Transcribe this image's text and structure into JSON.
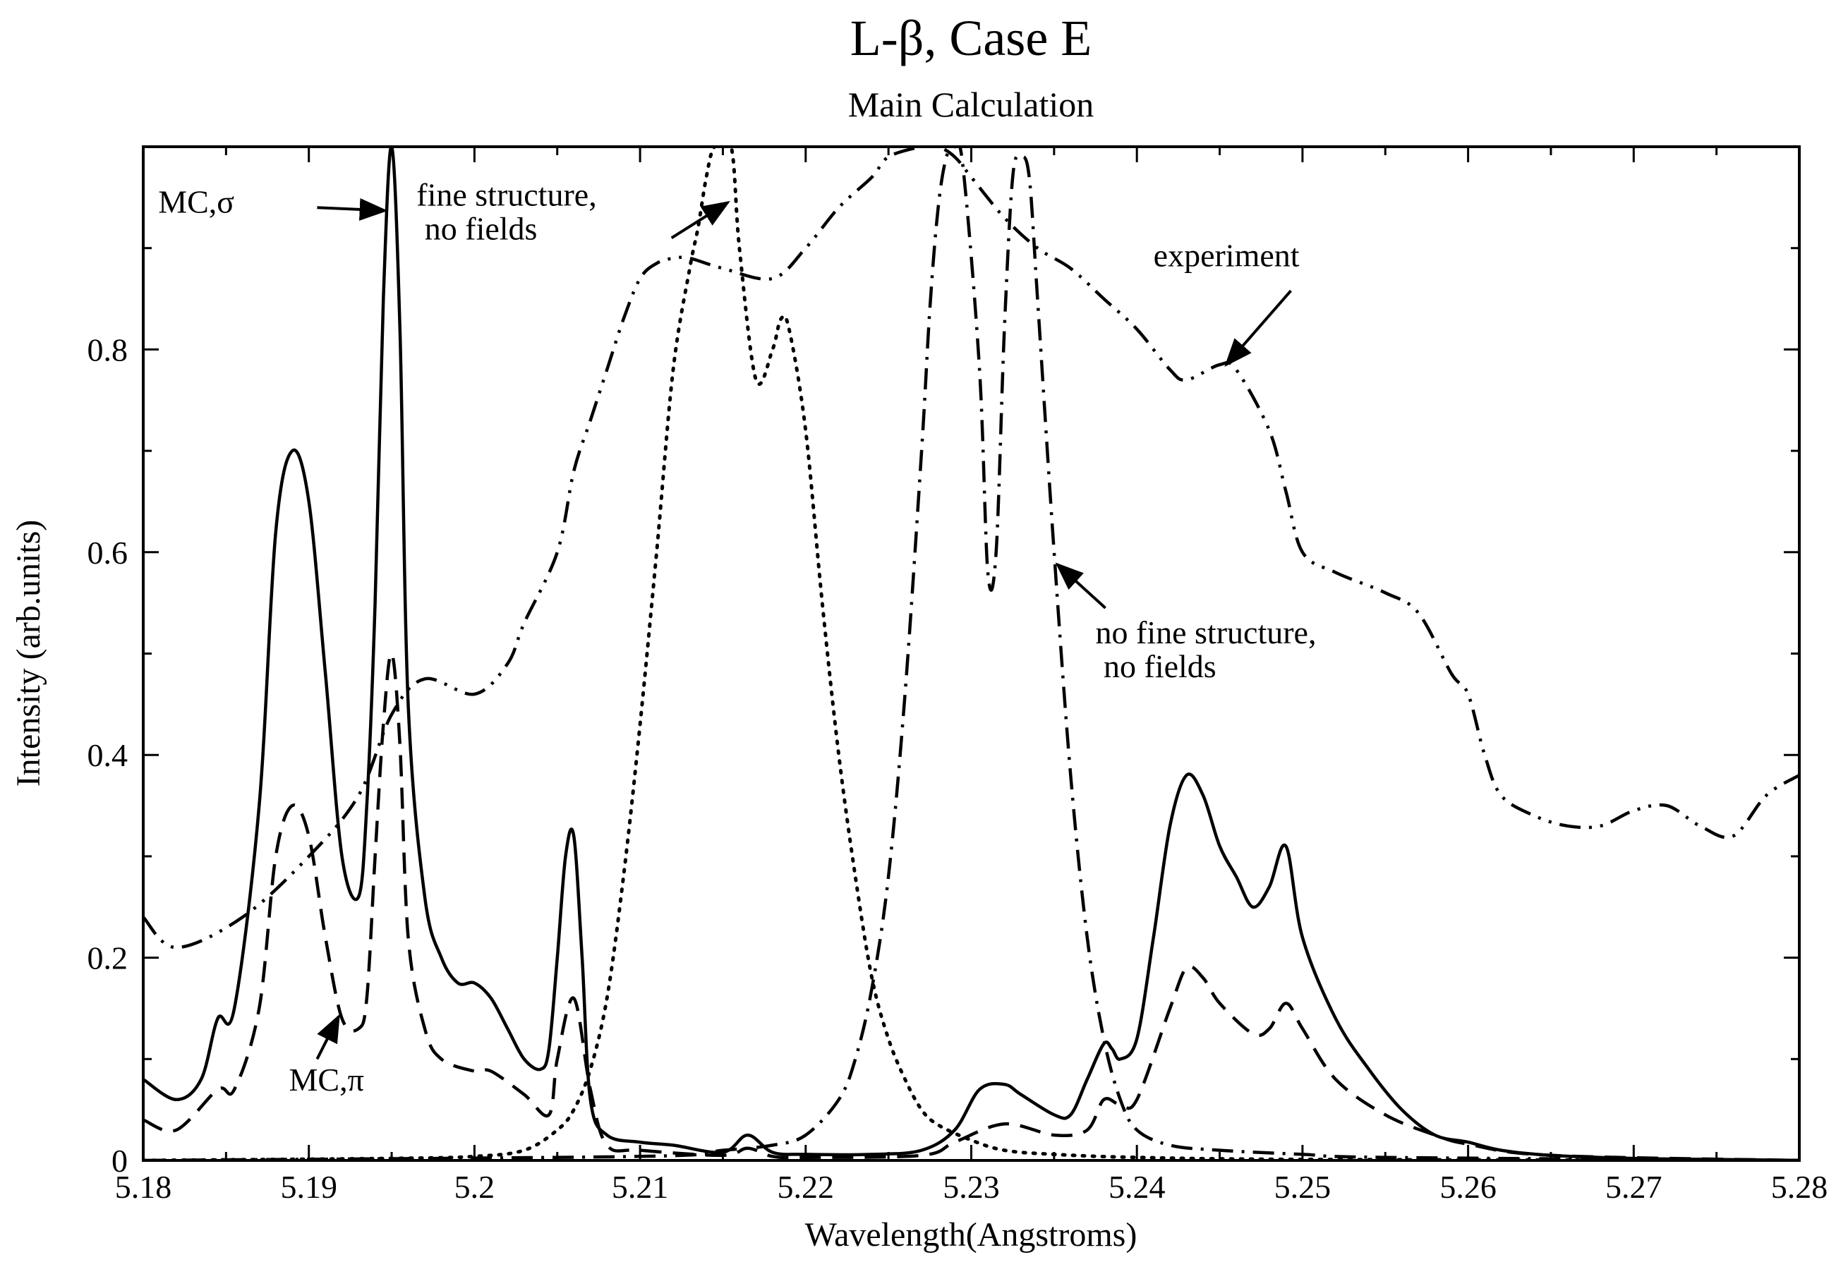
{
  "chart_data": {
    "type": "line",
    "title": "L-β,  Case E",
    "subtitle": "Main Calculation",
    "xlabel": "Wavelength(Angstroms)",
    "ylabel": "Intensity (arb.units)",
    "xlim": [
      5.18,
      5.28
    ],
    "ylim": [
      0,
      1.0
    ],
    "xticks": [
      5.18,
      5.19,
      5.2,
      5.21,
      5.22,
      5.23,
      5.24,
      5.25,
      5.26,
      5.27,
      5.28
    ],
    "xtick_labels": [
      "5.18",
      "5.19",
      "5.2",
      "5.21",
      "5.22",
      "5.23",
      "5.24",
      "5.25",
      "5.26",
      "5.27",
      "5.28"
    ],
    "yticks": [
      0,
      0.2,
      0.4,
      0.6,
      0.8
    ],
    "ytick_labels": [
      "0",
      "0.2",
      "0.4",
      "0.6",
      "0.8"
    ],
    "grid": false,
    "legend": "none",
    "series": [
      {
        "name": "MC,σ",
        "style": "solid",
        "x": [
          5.18,
          5.182,
          5.1835,
          5.1845,
          5.1855,
          5.187,
          5.188,
          5.189,
          5.19,
          5.191,
          5.192,
          5.193,
          5.1935,
          5.194,
          5.1945,
          5.195,
          5.1955,
          5.196,
          5.197,
          5.198,
          5.199,
          5.2,
          5.201,
          5.202,
          5.203,
          5.204,
          5.2045,
          5.205,
          5.2055,
          5.206,
          5.2065,
          5.207,
          5.208,
          5.21,
          5.212,
          5.215,
          5.2165,
          5.218,
          5.22,
          5.224,
          5.227,
          5.229,
          5.2305,
          5.232,
          5.233,
          5.235,
          5.236,
          5.237,
          5.238,
          5.2385,
          5.239,
          5.24,
          5.241,
          5.242,
          5.243,
          5.244,
          5.245,
          5.246,
          5.247,
          5.248,
          5.249,
          5.25,
          5.252,
          5.254,
          5.256,
          5.258,
          5.26,
          5.262,
          5.265,
          5.27,
          5.275,
          5.28
        ],
        "y": [
          0.08,
          0.06,
          0.08,
          0.14,
          0.15,
          0.35,
          0.62,
          0.7,
          0.65,
          0.48,
          0.3,
          0.26,
          0.35,
          0.55,
          0.85,
          1.0,
          0.82,
          0.45,
          0.26,
          0.2,
          0.175,
          0.175,
          0.16,
          0.13,
          0.1,
          0.09,
          0.11,
          0.2,
          0.3,
          0.32,
          0.2,
          0.06,
          0.025,
          0.018,
          0.015,
          0.008,
          0.025,
          0.008,
          0.006,
          0.006,
          0.01,
          0.03,
          0.07,
          0.075,
          0.065,
          0.045,
          0.045,
          0.08,
          0.115,
          0.11,
          0.1,
          0.12,
          0.22,
          0.33,
          0.38,
          0.36,
          0.31,
          0.28,
          0.25,
          0.27,
          0.31,
          0.22,
          0.14,
          0.09,
          0.05,
          0.025,
          0.018,
          0.01,
          0.005,
          0.002,
          0.001,
          0.0
        ]
      },
      {
        "name": "MC,π",
        "style": "dashed",
        "x": [
          5.18,
          5.182,
          5.1845,
          5.1855,
          5.187,
          5.188,
          5.189,
          5.19,
          5.191,
          5.192,
          5.193,
          5.1935,
          5.194,
          5.1945,
          5.195,
          5.1955,
          5.196,
          5.197,
          5.198,
          5.2,
          5.201,
          5.203,
          5.2045,
          5.205,
          5.206,
          5.207,
          5.208,
          5.21,
          5.215,
          5.2165,
          5.218,
          5.22,
          5.227,
          5.229,
          5.232,
          5.235,
          5.237,
          5.238,
          5.239,
          5.24,
          5.242,
          5.243,
          5.244,
          5.245,
          5.247,
          5.248,
          5.249,
          5.25,
          5.252,
          5.255,
          5.258,
          5.26,
          5.265,
          5.28
        ],
        "y": [
          0.04,
          0.03,
          0.07,
          0.07,
          0.15,
          0.3,
          0.35,
          0.32,
          0.22,
          0.14,
          0.13,
          0.16,
          0.3,
          0.43,
          0.5,
          0.41,
          0.22,
          0.13,
          0.1,
          0.088,
          0.088,
          0.065,
          0.045,
          0.1,
          0.16,
          0.07,
          0.015,
          0.01,
          0.005,
          0.012,
          0.004,
          0.003,
          0.005,
          0.018,
          0.036,
          0.025,
          0.03,
          0.06,
          0.055,
          0.06,
          0.15,
          0.19,
          0.18,
          0.155,
          0.125,
          0.13,
          0.155,
          0.13,
          0.08,
          0.045,
          0.025,
          0.016,
          0.005,
          0.0
        ]
      },
      {
        "name": "fine structure, no fields",
        "style": "dotted",
        "x": [
          5.18,
          5.195,
          5.2,
          5.203,
          5.205,
          5.206,
          5.207,
          5.208,
          5.209,
          5.21,
          5.211,
          5.212,
          5.213,
          5.2135,
          5.214,
          5.2145,
          5.2155,
          5.216,
          5.217,
          5.218,
          5.2185,
          5.219,
          5.22,
          5.221,
          5.222,
          5.223,
          5.224,
          5.225,
          5.226,
          5.227,
          5.228,
          5.23,
          5.232,
          5.235,
          5.24,
          5.25,
          5.28
        ],
        "y": [
          0.0,
          0.002,
          0.004,
          0.01,
          0.03,
          0.05,
          0.09,
          0.16,
          0.28,
          0.43,
          0.6,
          0.78,
          0.88,
          0.92,
          0.97,
          1.0,
          1.0,
          0.9,
          0.77,
          0.8,
          0.83,
          0.82,
          0.72,
          0.55,
          0.4,
          0.28,
          0.18,
          0.12,
          0.08,
          0.05,
          0.035,
          0.02,
          0.01,
          0.006,
          0.003,
          0.001,
          0.0
        ]
      },
      {
        "name": "no fine structure, no fields",
        "style": "dashdot",
        "x": [
          5.18,
          5.21,
          5.215,
          5.218,
          5.22,
          5.222,
          5.223,
          5.224,
          5.225,
          5.226,
          5.227,
          5.2275,
          5.228,
          5.2285,
          5.229,
          5.2295,
          5.2305,
          5.231,
          5.2315,
          5.232,
          5.2325,
          5.233,
          5.2335,
          5.234,
          5.235,
          5.236,
          5.237,
          5.238,
          5.239,
          5.24,
          5.242,
          5.245,
          5.25,
          5.255,
          5.28
        ],
        "y": [
          0.0,
          0.004,
          0.01,
          0.015,
          0.025,
          0.06,
          0.1,
          0.17,
          0.28,
          0.46,
          0.7,
          0.84,
          0.94,
          0.99,
          1.0,
          0.98,
          0.78,
          0.58,
          0.6,
          0.82,
          0.97,
          0.99,
          0.97,
          0.85,
          0.6,
          0.38,
          0.22,
          0.12,
          0.06,
          0.03,
          0.015,
          0.01,
          0.006,
          0.003,
          0.0
        ]
      },
      {
        "name": "experiment",
        "style": "dashdotdot",
        "x": [
          5.18,
          5.182,
          5.186,
          5.19,
          5.193,
          5.195,
          5.197,
          5.2,
          5.202,
          5.203,
          5.205,
          5.206,
          5.207,
          5.208,
          5.209,
          5.21,
          5.211,
          5.212,
          5.213,
          5.215,
          5.218,
          5.22,
          5.222,
          5.224,
          5.225,
          5.227,
          5.228,
          5.229,
          5.23,
          5.232,
          5.234,
          5.236,
          5.238,
          5.24,
          5.242,
          5.243,
          5.245,
          5.246,
          5.248,
          5.249,
          5.25,
          5.252,
          5.255,
          5.257,
          5.259,
          5.26,
          5.261,
          5.262,
          5.264,
          5.266,
          5.268,
          5.27,
          5.272,
          5.274,
          5.276,
          5.278,
          5.28
        ],
        "y": [
          0.24,
          0.21,
          0.24,
          0.3,
          0.36,
          0.44,
          0.475,
          0.46,
          0.49,
          0.53,
          0.6,
          0.68,
          0.73,
          0.78,
          0.83,
          0.87,
          0.885,
          0.89,
          0.89,
          0.88,
          0.87,
          0.9,
          0.94,
          0.97,
          0.99,
          1.0,
          1.0,
          0.99,
          0.97,
          0.93,
          0.9,
          0.88,
          0.85,
          0.82,
          0.78,
          0.77,
          0.785,
          0.78,
          0.72,
          0.66,
          0.6,
          0.58,
          0.56,
          0.54,
          0.48,
          0.46,
          0.4,
          0.36,
          0.34,
          0.33,
          0.33,
          0.345,
          0.35,
          0.33,
          0.32,
          0.36,
          0.38
        ]
      }
    ],
    "annotations": [
      {
        "lines": [
          "MC,σ"
        ],
        "anchor": "end",
        "tx": 5.1855,
        "ty": 0.935,
        "ax": 5.1905,
        "ay": 0.94,
        "hx": 5.1946,
        "hy": 0.937
      },
      {
        "lines": [
          "fine structure,",
          " no fields"
        ],
        "anchor": "start",
        "tx": 5.1965,
        "ty": 0.942,
        "ax": 5.2119,
        "ay": 0.91,
        "hx": 5.2153,
        "hy": 0.945
      },
      {
        "lines": [
          "experiment"
        ],
        "anchor": "start",
        "tx": 5.241,
        "ty": 0.882,
        "ax": 5.2493,
        "ay": 0.858,
        "hx": 5.2454,
        "hy": 0.785
      },
      {
        "lines": [
          "no fine structure,",
          " no fields"
        ],
        "anchor": "start",
        "tx": 5.2375,
        "ty": 0.51,
        "ax": 5.2381,
        "ay": 0.545,
        "hx": 5.2352,
        "hy": 0.588
      },
      {
        "lines": [
          "MC,π"
        ],
        "anchor": "start",
        "tx": 5.1888,
        "ty": 0.069,
        "ax": 5.1905,
        "ay": 0.1,
        "hx": 5.1918,
        "hy": 0.142
      }
    ]
  }
}
